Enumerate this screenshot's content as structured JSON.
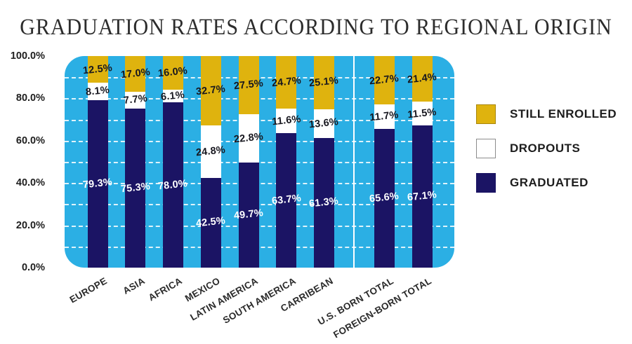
{
  "title": "GRADUATION RATES ACCORDING TO REGIONAL ORIGIN",
  "y_axis": {
    "tick_labels": [
      "100.0%",
      "80.0%",
      "60.0%",
      "40.0%",
      "20.0%",
      "0.0%"
    ]
  },
  "legend": {
    "items": [
      {
        "key": "still-enrolled",
        "label": "STILL ENROLLED",
        "color": "#DFB30E",
        "border": "#A8860D"
      },
      {
        "key": "dropouts",
        "label": "DROPOUTS",
        "color": "#FFFFFF",
        "border": "#8C8C8C"
      },
      {
        "key": "graduated",
        "label": "GRADUATED",
        "color": "#1B1464",
        "border": "#1B1464"
      }
    ]
  },
  "colors": {
    "plot_background": "#2BAFE4",
    "gridline": "#FFFFFF",
    "group_separator": "#FFFFFF",
    "still_enrolled": "#DFB30E",
    "dropouts": "#FFFFFF",
    "graduated": "#1B1464",
    "dark_label": "#17171F",
    "light_label": "#FFFFFF"
  },
  "chart_data": {
    "type": "bar",
    "stacked": true,
    "title": "GRADUATION RATES ACCORDING TO REGIONAL ORIGIN",
    "categories": [
      "EUROPE",
      "ASIA",
      "AFRICA",
      "MEXICO",
      "LATIN AMERICA",
      "SOUTH AMERICA",
      "CARRIBEAN",
      "U.S. BORN TOTAL",
      "FOREIGN-BORN TOTAL"
    ],
    "series": [
      {
        "key": "graduated",
        "name": "GRADUATED",
        "color": "#1B1464",
        "label_color": "#FFFFFF",
        "values": [
          79.3,
          75.3,
          78.0,
          42.5,
          49.7,
          63.7,
          61.3,
          65.6,
          67.1
        ]
      },
      {
        "key": "dropouts",
        "name": "DROPOUTS",
        "color": "#FFFFFF",
        "label_color": "#17171F",
        "values": [
          8.1,
          7.7,
          6.1,
          24.8,
          22.8,
          11.6,
          13.6,
          11.7,
          11.5
        ]
      },
      {
        "key": "still-enrolled",
        "name": "STILL ENROLLED",
        "color": "#DFB30E",
        "label_color": "#17171F",
        "values": [
          12.5,
          17.0,
          16.0,
          32.7,
          27.5,
          24.7,
          25.1,
          22.7,
          21.4
        ]
      }
    ],
    "value_suffix": "%",
    "ylim": [
      0,
      100
    ],
    "y_tick_step": 20,
    "gridline_step": 10,
    "grid": true,
    "group_separator_after_index": 6,
    "legend_position": "right",
    "stack_order_bottom_to_top": [
      "GRADUATED",
      "DROPOUTS",
      "STILL ENROLLED"
    ],
    "xlabel": "",
    "ylabel": ""
  }
}
